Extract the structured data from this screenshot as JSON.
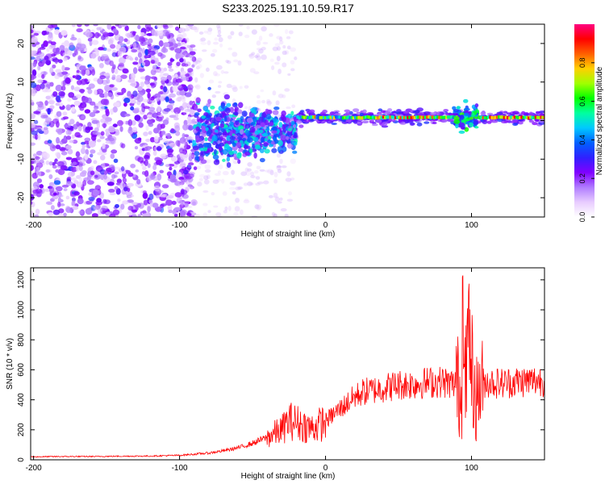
{
  "title": "S233.2025.191.10.59.R17",
  "chart_data": [
    {
      "type": "heatmap",
      "xlabel": "Height of straight line (km)",
      "ylabel": "Frequency (Hz)",
      "xlim": [
        -202,
        150
      ],
      "ylim": [
        -25,
        25
      ],
      "xticks": [
        -200,
        -100,
        0,
        100
      ],
      "yticks": [
        -20,
        -10,
        0,
        10,
        20
      ],
      "colorbar": {
        "label": "Normalized spectral amplitude",
        "ticks": [
          0.0,
          0.2,
          0.4,
          0.6,
          0.8
        ],
        "range": [
          0,
          1
        ],
        "colormap": [
          "#ffffff",
          "#e8ccff",
          "#b07cff",
          "#8000ff",
          "#3020ff",
          "#0060ff",
          "#00c8ff",
          "#00ffa0",
          "#00ff00",
          "#a0ff00",
          "#ffd000",
          "#ff6000",
          "#ff0000",
          "#ff0080"
        ]
      },
      "features": [
        {
          "x_range": [
            -202,
            -90
          ],
          "description_region": "broadband noise",
          "level": 0.2
        },
        {
          "x_range": [
            -90,
            -20
          ],
          "freq_center": -3,
          "level": 0.45
        },
        {
          "x_range": [
            -20,
            150
          ],
          "freq_center": 0.8,
          "level": 0.9
        }
      ]
    },
    {
      "type": "line",
      "xlabel": "Height of straight line (km)",
      "ylabel": "SNR (10 * v/v)",
      "xlim": [
        -202,
        150
      ],
      "ylim": [
        0,
        1280
      ],
      "xticks": [
        -200,
        -100,
        0,
        100
      ],
      "yticks": [
        0,
        200,
        400,
        600,
        800,
        1000,
        1200
      ],
      "color": "#ff0000",
      "series": [
        {
          "x": [
            -200,
            -180,
            -160,
            -140,
            -120,
            -100,
            -80,
            -70,
            -60,
            -50,
            -40,
            -30,
            -25,
            -20,
            -15,
            -10,
            -5,
            0,
            5,
            10,
            15,
            20,
            25,
            30,
            40,
            50,
            60,
            70,
            80,
            90,
            95,
            98,
            100,
            103,
            106,
            110,
            120,
            130,
            140,
            150
          ],
          "y": [
            20,
            22,
            22,
            24,
            25,
            30,
            45,
            60,
            80,
            110,
            150,
            200,
            260,
            250,
            230,
            210,
            230,
            260,
            300,
            340,
            380,
            420,
            450,
            460,
            480,
            500,
            505,
            515,
            520,
            500,
            450,
            700,
            600,
            400,
            500,
            520,
            510,
            520,
            525,
            530
          ]
        }
      ]
    }
  ]
}
